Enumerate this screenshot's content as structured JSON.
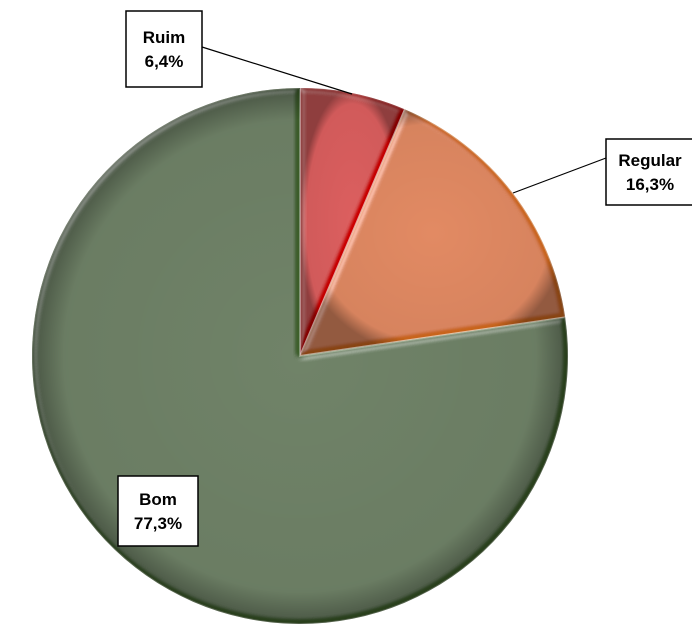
{
  "chart_data": {
    "type": "pie",
    "title": "",
    "start_angle_deg": 0,
    "direction": "clockwise",
    "slices": [
      {
        "label": "Ruim",
        "value": 6.4,
        "value_text": "6,4%",
        "color": "#cc0000"
      },
      {
        "label": "Regular",
        "value": 16.3,
        "value_text": "16,3%",
        "color": "#d2691e"
      },
      {
        "label": "Bom",
        "value": 77.3,
        "value_text": "77,3%",
        "color": "#3e5e2a"
      }
    ],
    "legend": "none",
    "data_labels": "boxed, name and percentage"
  }
}
